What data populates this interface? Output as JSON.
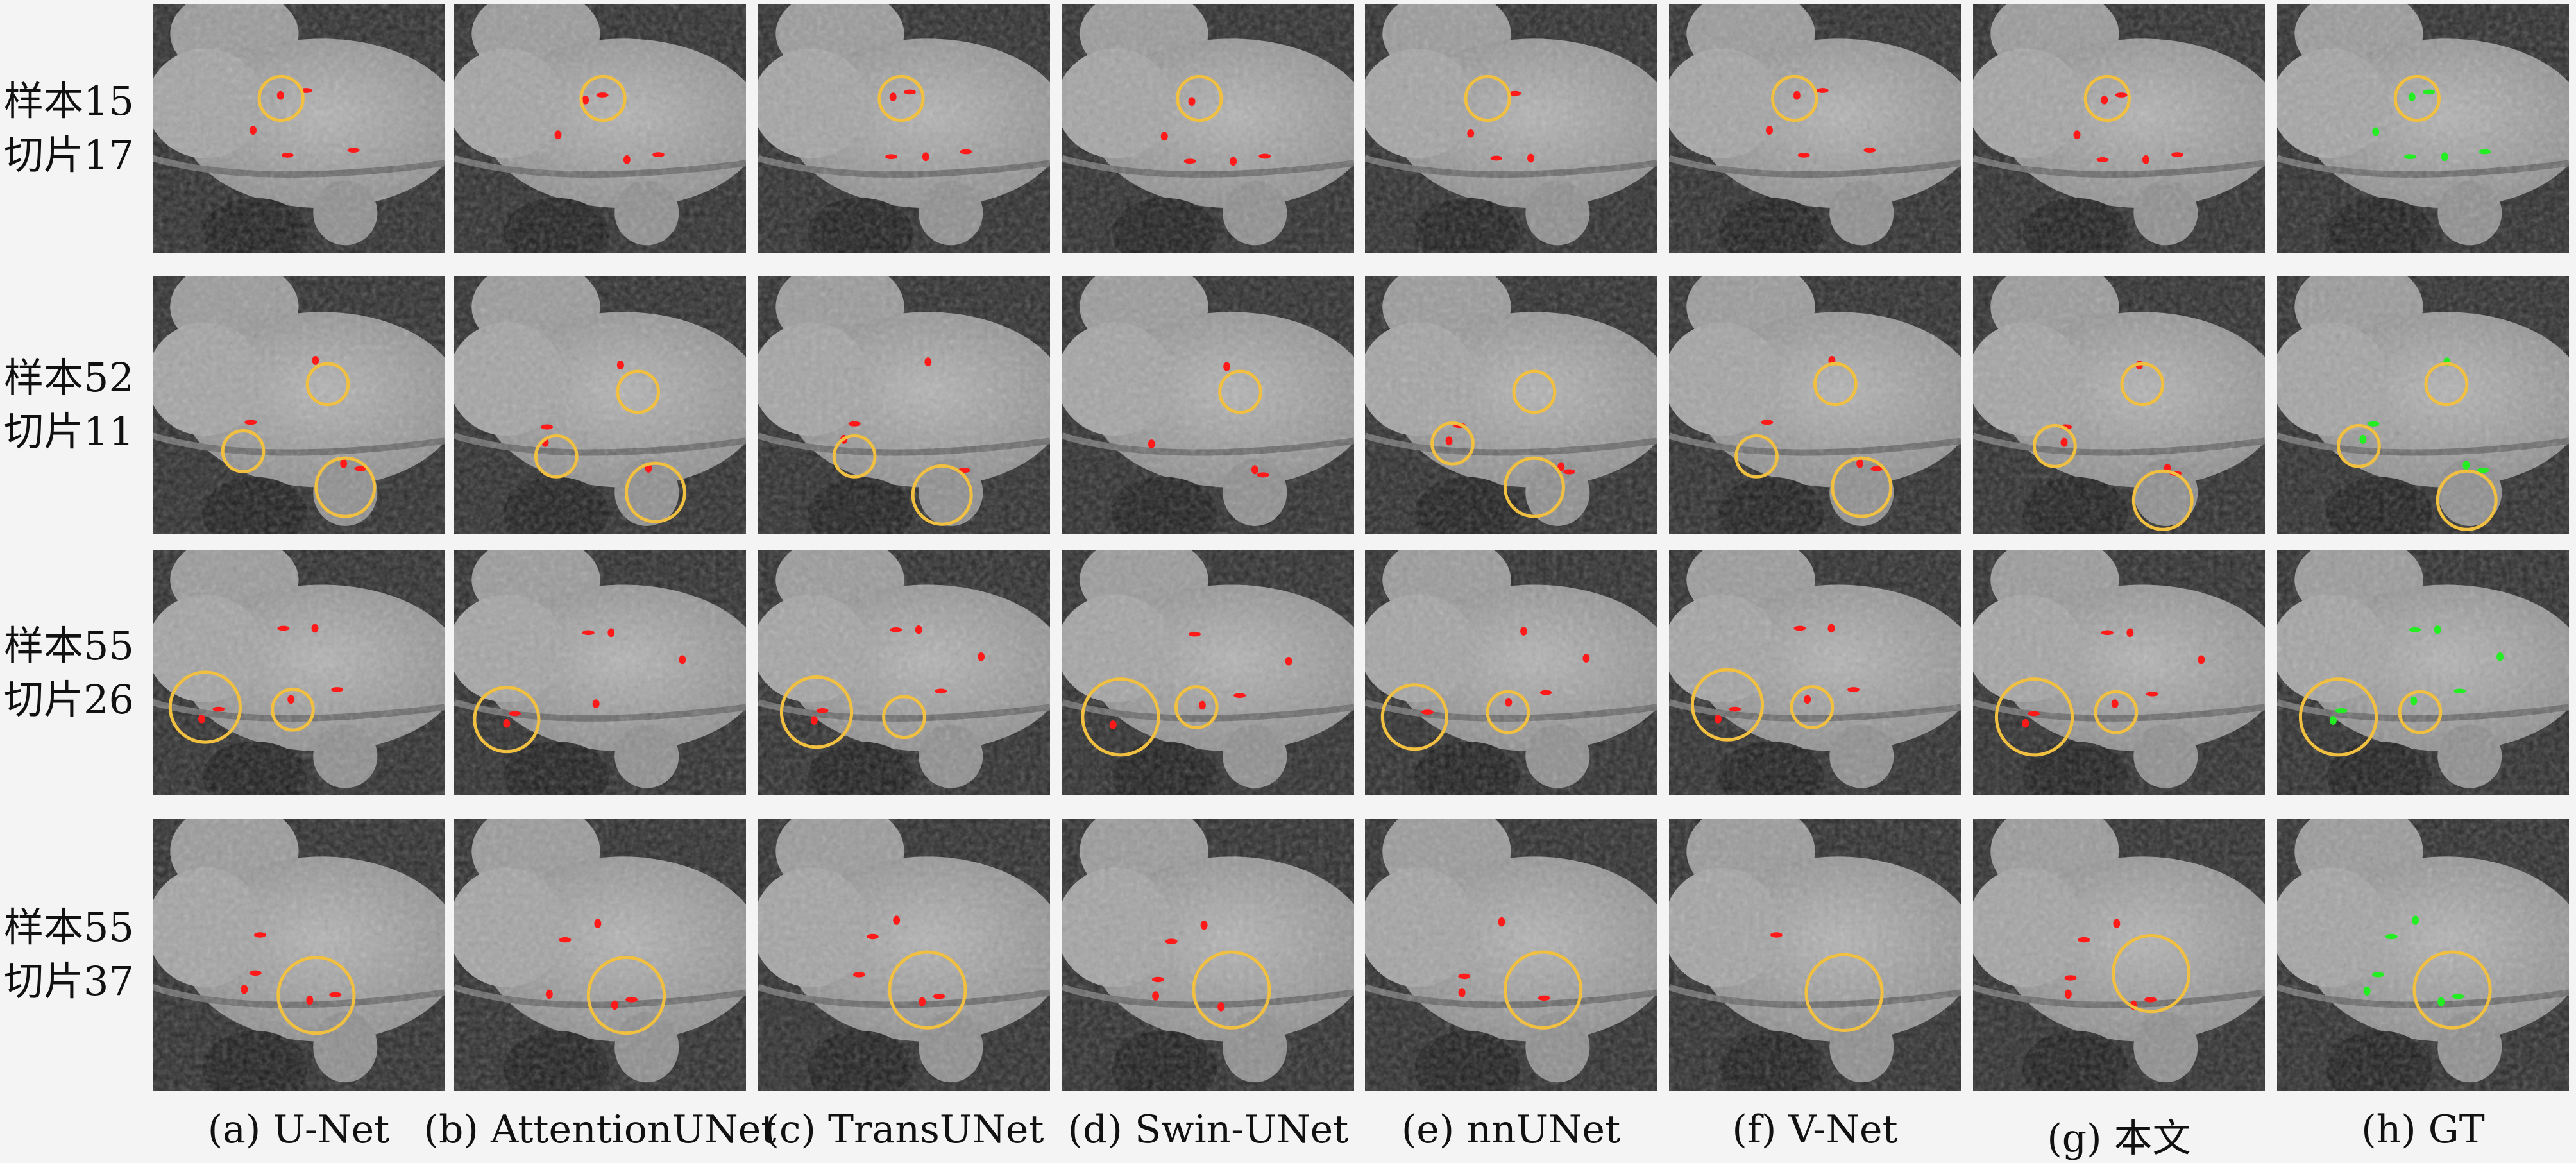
{
  "rows": [
    {
      "sample": "样本15",
      "slice": "切片17"
    },
    {
      "sample": "样本52",
      "slice": "切片11"
    },
    {
      "sample": "样本55",
      "slice": "切片26"
    },
    {
      "sample": "样本55",
      "slice": "切片37"
    }
  ],
  "columns": [
    {
      "caption": "(a) U-Net"
    },
    {
      "caption": "(b) AttentionUNet"
    },
    {
      "caption": "(c) TransUNet"
    },
    {
      "caption": "(d) Swin-UNet"
    },
    {
      "caption": "(e) nnUNet"
    },
    {
      "caption": "(f) V-Net"
    },
    {
      "caption": "(g) 本文"
    },
    {
      "caption": "(h) GT"
    }
  ],
  "colors": {
    "prediction": "#ff1a1a",
    "ground_truth": "#22ee22",
    "highlight_circle": "#f2c040",
    "background": "#f4f4f4"
  }
}
